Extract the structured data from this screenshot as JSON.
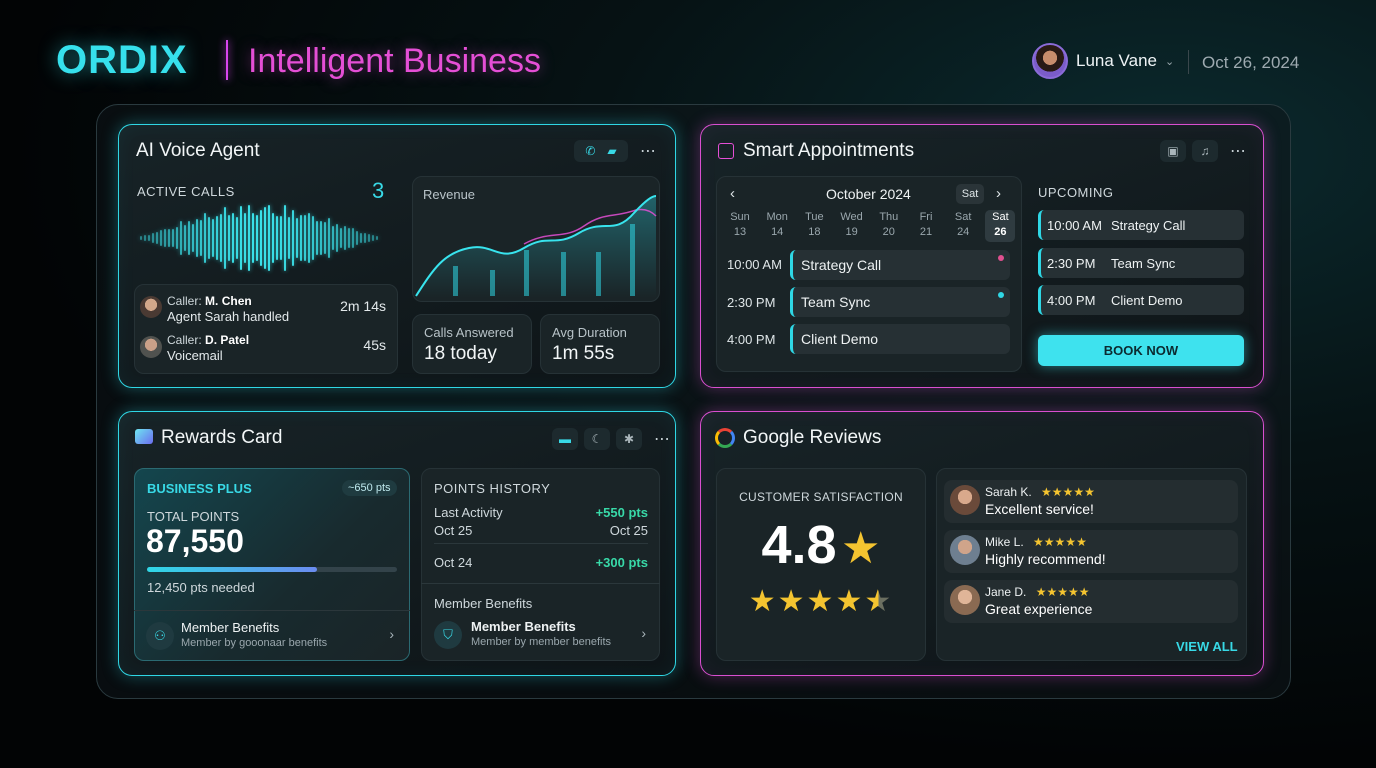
{
  "brand": {
    "logo": "ORDIX",
    "tagline": "Intelligent Business",
    "accent_cyan": "#2fd7e5",
    "accent_pink": "#d94fd0"
  },
  "user": {
    "name": "Luna Vane",
    "date": "Oct 26, 2024"
  },
  "voice": {
    "title": "AI Voice Agent",
    "active_calls_label": "ACTIVE CALLS",
    "active_calls": "3",
    "revenue_label": "Revenue",
    "calls": [
      {
        "caller_prefix": "Caller:",
        "caller": "M. Chen",
        "status": "Agent Sarah handled",
        "duration": "2m 14s"
      },
      {
        "caller_prefix": "Caller:",
        "caller": "D. Patel",
        "status": "Voicemail",
        "duration": "45s"
      }
    ],
    "calls_answered_label": "Calls Answered",
    "calls_answered": "18 today",
    "avg_duration_label": "Avg Duration",
    "avg_duration": "1m 55s"
  },
  "appointments": {
    "title": "Smart Appointments",
    "month": "October 2024",
    "view_chip": "Sat",
    "days": [
      {
        "name": "Sun",
        "num": "13"
      },
      {
        "name": "Mon",
        "num": "14"
      },
      {
        "name": "Tue",
        "num": "18"
      },
      {
        "name": "Wed",
        "num": "19"
      },
      {
        "name": "Thu",
        "num": "20"
      },
      {
        "name": "Fri",
        "num": "21"
      },
      {
        "name": "Sat",
        "num": "24"
      },
      {
        "name": "Sat",
        "num": "26"
      }
    ],
    "slots": [
      {
        "time": "10:00 AM",
        "event": "Strategy Call",
        "dot": "#e0508f"
      },
      {
        "time": "2:30 PM",
        "event": "Team Sync",
        "dot": "#2fd7e5"
      },
      {
        "time": "4:00 PM",
        "event": "Client Demo",
        "dot": ""
      }
    ],
    "upcoming_label": "UPCOMING",
    "upcoming": [
      {
        "time": "10:00 AM",
        "event": "Strategy Call"
      },
      {
        "time": "2:30 PM",
        "event": "Team Sync"
      },
      {
        "time": "4:00 PM",
        "event": "Client Demo"
      }
    ],
    "book_label": "BOOK NOW"
  },
  "rewards": {
    "title": "Rewards Card",
    "tier": "BUSINESS PLUS",
    "tier_badge": "~650 pts",
    "total_label": "TOTAL POINTS",
    "total": "87,550",
    "progress": 0.68,
    "needed": "12,450 pts needed",
    "benefits_a_title": "Member Benefits",
    "benefits_a_sub": "Member by gooonaar benefits",
    "history_label": "POINTS HISTORY",
    "history": [
      {
        "label": "Last Activity",
        "points": "+550 pts",
        "date_left": "Oct 25",
        "date_right": "Oct 25"
      },
      {
        "label": "Oct 24",
        "points": "+300 pts"
      }
    ],
    "benefits_header": "Member Benefits",
    "benefits_b_title": "Member Benefits",
    "benefits_b_sub": "Member by member benefits"
  },
  "reviews": {
    "title": "Google Reviews",
    "satisfaction_label": "CUSTOMER SATISFACTION",
    "score": "4.8",
    "rating": 4.5,
    "items": [
      {
        "name": "Sarah K.",
        "text": "Excellent service!",
        "stars": 5
      },
      {
        "name": "Mike L.",
        "text": "Highly recommend!",
        "stars": 5
      },
      {
        "name": "Jane D.",
        "text": "Great experience",
        "stars": 5
      }
    ],
    "view_all": "VIEW ALL"
  }
}
